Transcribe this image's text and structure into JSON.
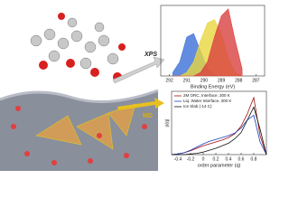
{
  "labels": {
    "xps": "XPS",
    "md": "MD"
  },
  "chart_data": [
    {
      "type": "area",
      "x_label": "Binding Energy (eV)",
      "x": [
        291.8,
        291.4,
        291.0,
        290.6,
        290.2,
        289.8,
        289.4,
        289.0,
        288.6,
        288.2,
        287.8
      ],
      "xlim": [
        292.5,
        286.5
      ],
      "xticks": [
        292,
        291,
        290,
        289,
        288,
        287
      ],
      "ylim": [
        0,
        1
      ],
      "series": [
        {
          "color": "#3a6fd8",
          "values": [
            0.05,
            0.2,
            0.55,
            0.6,
            0.35,
            0.1,
            0.02,
            0,
            0,
            0,
            0
          ]
        },
        {
          "color": "#e8d640",
          "values": [
            0,
            0,
            0.05,
            0.2,
            0.5,
            0.75,
            0.8,
            0.6,
            0.25,
            0.05,
            0
          ]
        },
        {
          "color": "#d94040",
          "values": [
            0,
            0,
            0,
            0,
            0.05,
            0.2,
            0.55,
            0.85,
            0.95,
            0.5,
            0.1
          ]
        }
      ]
    },
    {
      "type": "line",
      "x_label": "order parameter (q)",
      "y_label": "p(q)",
      "x": [
        -0.5,
        -0.4,
        -0.3,
        -0.2,
        -0.1,
        0,
        0.1,
        0.2,
        0.3,
        0.4,
        0.5,
        0.6,
        0.7,
        0.8,
        0.9,
        1.0
      ],
      "xlim": [
        -0.5,
        1.0
      ],
      "xticks": [
        -0.4,
        -0.2,
        0,
        0.2,
        0.4,
        0.6,
        0.8
      ],
      "ylim": [
        0,
        1
      ],
      "series": [
        {
          "name": "2M ORC, Interface, 300 K",
          "color": "#a01010",
          "values": [
            0,
            0.01,
            0.03,
            0.06,
            0.1,
            0.14,
            0.17,
            0.2,
            0.23,
            0.27,
            0.33,
            0.45,
            0.65,
            0.9,
            0.3,
            0
          ]
        },
        {
          "name": "Liq. Water Interface, 300 K",
          "color": "#2040c0",
          "values": [
            0,
            0.01,
            0.03,
            0.07,
            0.12,
            0.17,
            0.21,
            0.24,
            0.27,
            0.3,
            0.34,
            0.42,
            0.55,
            0.62,
            0.2,
            0
          ]
        },
        {
          "name": "Ice Slab (-14 C)",
          "color": "#111111",
          "values": [
            0,
            0,
            0,
            0.01,
            0.02,
            0.04,
            0.07,
            0.1,
            0.14,
            0.18,
            0.25,
            0.35,
            0.55,
            0.75,
            0.4,
            0
          ]
        }
      ]
    }
  ]
}
